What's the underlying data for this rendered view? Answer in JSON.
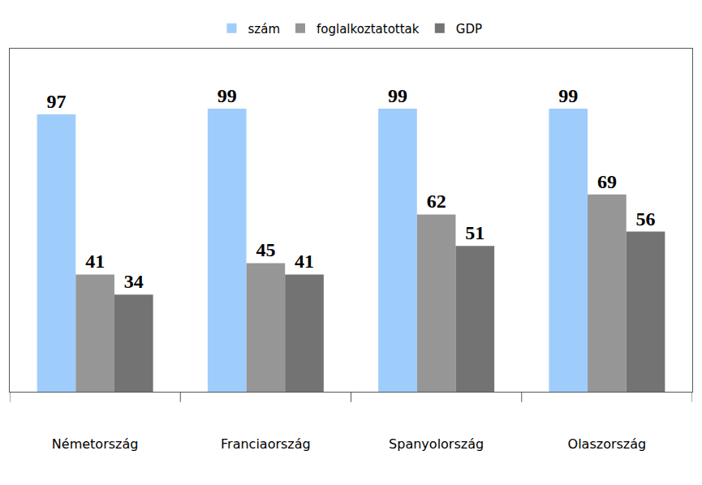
{
  "chart_data": {
    "type": "bar",
    "categories": [
      "Németország",
      "Franciaország",
      "Spanyolország",
      "Olaszország"
    ],
    "series": [
      {
        "name": "szám",
        "color": "#9fcdfb",
        "values": [
          97,
          99,
          99,
          99
        ]
      },
      {
        "name": "foglalkoztatottak",
        "color": "#969696",
        "values": [
          41,
          45,
          62,
          69
        ]
      },
      {
        "name": "GDP",
        "color": "#737373",
        "values": [
          34,
          41,
          51,
          56
        ]
      }
    ],
    "ylim": [
      0,
      120
    ],
    "grid": false,
    "legend": "top",
    "data_labels": true,
    "tick_labels": "x"
  }
}
